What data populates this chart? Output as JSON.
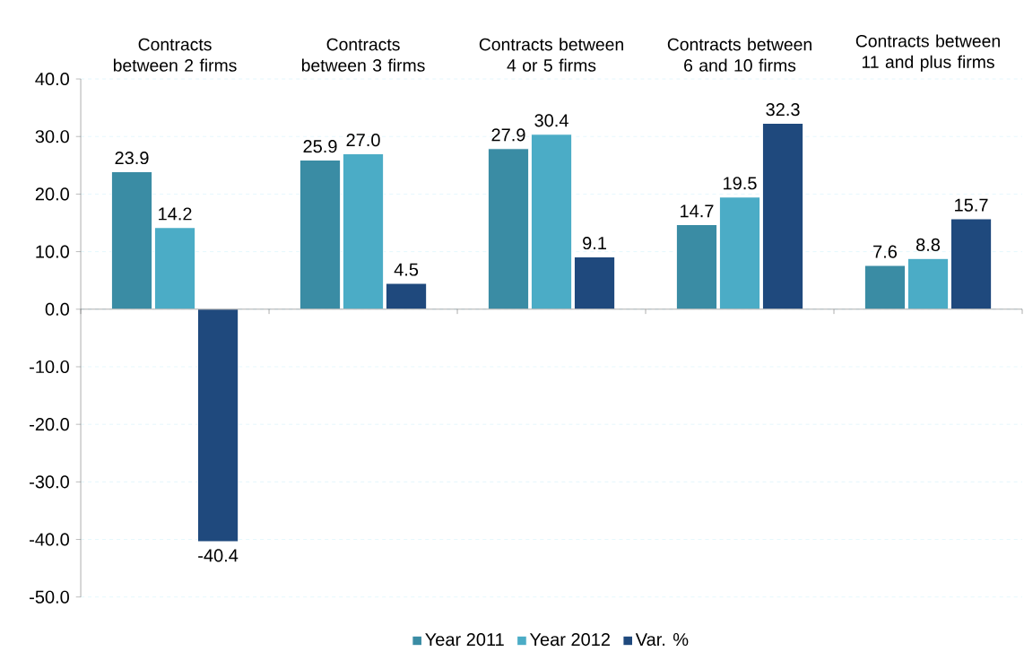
{
  "chart_data": {
    "type": "bar",
    "categories": [
      "Contracts between 2 firms",
      "Contracts between 3 firms",
      "Contracts between 4 or 5 firms",
      "Contracts between 6 and 10 firms",
      "Contracts between 11 and plus firms"
    ],
    "series": [
      {
        "name": "Year 2011",
        "color": "#3a8ca4",
        "values": [
          23.9,
          25.9,
          27.9,
          14.7,
          7.6
        ],
        "value_labels": [
          "23.9",
          "25.9",
          "27.9",
          "14.7",
          "7.6"
        ]
      },
      {
        "name": "Year 2012",
        "color": "#4bacc6",
        "values": [
          14.2,
          27.0,
          30.4,
          19.5,
          8.8
        ],
        "value_labels": [
          "14.2",
          "27.0",
          "30.4",
          "19.5",
          "8.8"
        ]
      },
      {
        "name": "Var. %",
        "color": "#1f497d",
        "values": [
          -40.4,
          4.5,
          9.1,
          32.3,
          15.7
        ],
        "value_labels": [
          "-40.4",
          "4.5",
          "9.1",
          "32.3",
          "15.7"
        ]
      }
    ],
    "ylim": [
      -50,
      40
    ],
    "yticks": [
      {
        "value": -50,
        "label": "-50.0"
      },
      {
        "value": -40,
        "label": "-40.0"
      },
      {
        "value": -30,
        "label": "-30.0"
      },
      {
        "value": -20,
        "label": "-20.0"
      },
      {
        "value": -10,
        "label": "-10.0"
      },
      {
        "value": 0,
        "label": "0.0"
      },
      {
        "value": 10,
        "label": "10.0"
      },
      {
        "value": 20,
        "label": "20.0"
      },
      {
        "value": 30,
        "label": "30.0"
      },
      {
        "value": 40,
        "label": "40.0"
      }
    ],
    "grid": "y",
    "legend": "bottom"
  }
}
